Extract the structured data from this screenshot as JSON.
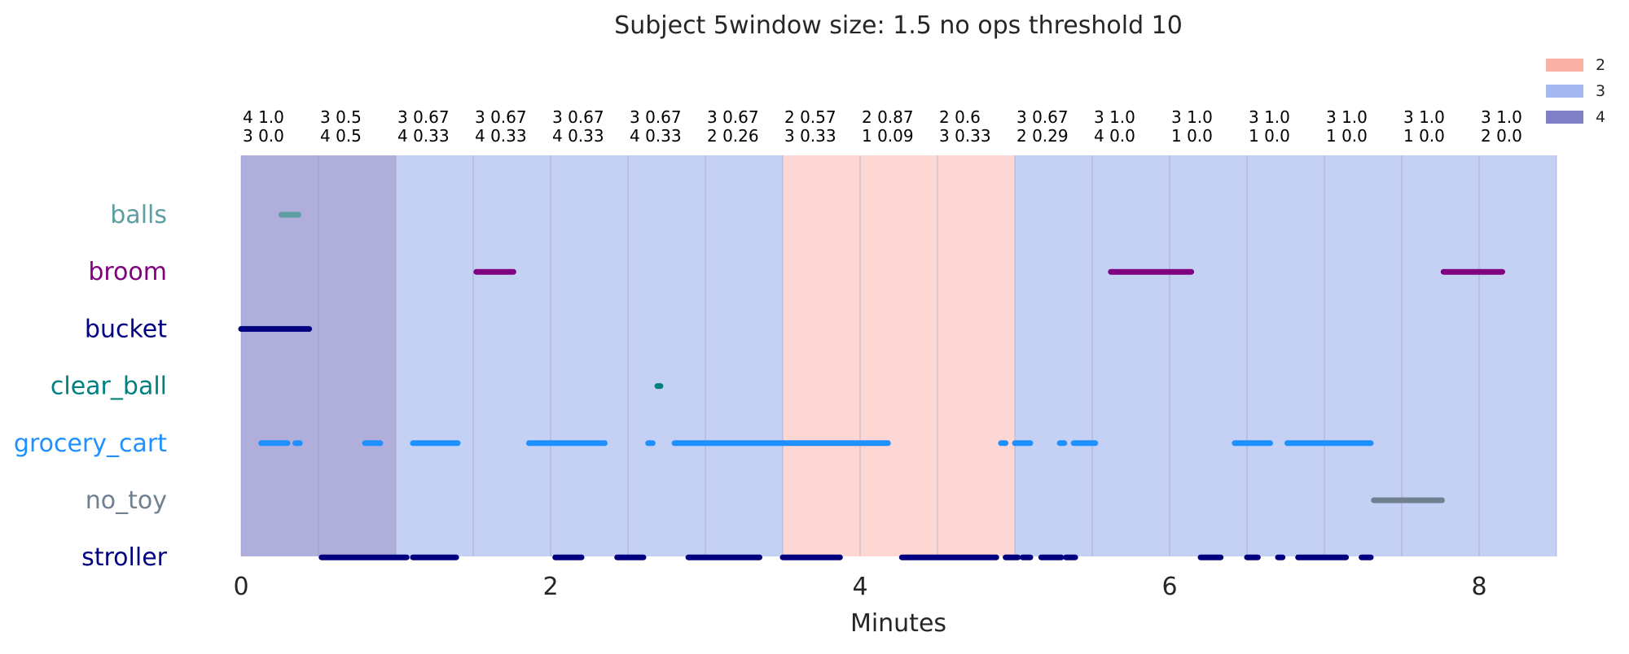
{
  "chart_data": {
    "type": "timeline",
    "title": "Subject 5window size: 1.5 no ops threshold 10",
    "xlabel": "Minutes",
    "ylabel": "",
    "xlim": [
      0,
      8.5
    ],
    "xticks": [
      0,
      2,
      4,
      6,
      8
    ],
    "x_tick_labels": [
      "0",
      "2",
      "4",
      "6",
      "8"
    ],
    "grid": false,
    "legend": {
      "position": "top-right",
      "entries": [
        {
          "label": "2",
          "color": "#fab0a4"
        },
        {
          "label": "3",
          "color": "#a5b8ef"
        },
        {
          "label": "4",
          "color": "#7f80c6"
        }
      ]
    },
    "category_colors": {
      "2": "#fdd7d3",
      "3": "#c5d1f4",
      "4": "#b0afdc"
    },
    "windows": [
      {
        "start": 0.0,
        "end": 0.5,
        "category": "4",
        "label1": "4 1.0",
        "label2": "3 0.0"
      },
      {
        "start": 0.5,
        "end": 1.0,
        "category": "4",
        "label1": "3 0.5",
        "label2": "4 0.5"
      },
      {
        "start": 1.0,
        "end": 1.5,
        "category": "3",
        "label1": "3 0.67",
        "label2": "4 0.33"
      },
      {
        "start": 1.5,
        "end": 2.0,
        "category": "3",
        "label1": "3 0.67",
        "label2": "4 0.33"
      },
      {
        "start": 2.0,
        "end": 2.5,
        "category": "3",
        "label1": "3 0.67",
        "label2": "4 0.33"
      },
      {
        "start": 2.5,
        "end": 3.0,
        "category": "3",
        "label1": "3 0.67",
        "label2": "4 0.33"
      },
      {
        "start": 3.0,
        "end": 3.5,
        "category": "3",
        "label1": "3 0.67",
        "label2": "2 0.26"
      },
      {
        "start": 3.5,
        "end": 4.0,
        "category": "2",
        "label1": "2 0.57",
        "label2": "3 0.33"
      },
      {
        "start": 4.0,
        "end": 4.5,
        "category": "2",
        "label1": "2 0.87",
        "label2": "1 0.09"
      },
      {
        "start": 4.5,
        "end": 5.0,
        "category": "2",
        "label1": "2 0.6",
        "label2": "3 0.33"
      },
      {
        "start": 5.0,
        "end": 5.5,
        "category": "3",
        "label1": "3 0.67",
        "label2": "2 0.29"
      },
      {
        "start": 5.5,
        "end": 6.0,
        "category": "3",
        "label1": "3 1.0",
        "label2": "4 0.0"
      },
      {
        "start": 6.0,
        "end": 6.5,
        "category": "3",
        "label1": "3 1.0",
        "label2": "1 0.0"
      },
      {
        "start": 6.5,
        "end": 7.0,
        "category": "3",
        "label1": "3 1.0",
        "label2": "1 0.0"
      },
      {
        "start": 7.0,
        "end": 7.5,
        "category": "3",
        "label1": "3 1.0",
        "label2": "1 0.0"
      },
      {
        "start": 7.5,
        "end": 8.0,
        "category": "3",
        "label1": "3 1.0",
        "label2": "1 0.0"
      },
      {
        "start": 8.0,
        "end": 8.5,
        "category": "3",
        "label1": "3 1.0",
        "label2": "2 0.0"
      }
    ],
    "series": [
      {
        "name": "balls",
        "color": "#5f9ea0",
        "intervals": [
          [
            0.26,
            0.37
          ]
        ]
      },
      {
        "name": "broom",
        "color": "#800080",
        "intervals": [
          [
            1.52,
            1.76
          ],
          [
            5.62,
            6.14
          ],
          [
            7.77,
            8.15
          ]
        ]
      },
      {
        "name": "bucket",
        "color": "#000080",
        "intervals": [
          [
            0.0,
            0.44
          ]
        ]
      },
      {
        "name": "clear_ball",
        "color": "#008080",
        "intervals": [
          [
            2.69,
            2.71
          ]
        ]
      },
      {
        "name": "grocery_cart",
        "color": "#1e90ff",
        "intervals": [
          [
            0.13,
            0.3
          ],
          [
            0.35,
            0.38
          ],
          [
            0.8,
            0.9
          ],
          [
            1.11,
            1.4
          ],
          [
            1.86,
            2.35
          ],
          [
            2.63,
            2.66
          ],
          [
            2.8,
            4.18
          ],
          [
            4.91,
            4.94
          ],
          [
            5.0,
            5.1
          ],
          [
            5.29,
            5.32
          ],
          [
            5.38,
            5.52
          ],
          [
            6.42,
            6.65
          ],
          [
            6.76,
            7.3
          ]
        ]
      },
      {
        "name": "no_toy",
        "color": "#708090",
        "intervals": [
          [
            7.32,
            7.76
          ]
        ]
      },
      {
        "name": "stroller",
        "color": "#000080",
        "intervals": [
          [
            0.52,
            1.07
          ],
          [
            1.11,
            1.39
          ],
          [
            2.03,
            2.2
          ],
          [
            2.43,
            2.6
          ],
          [
            2.89,
            3.35
          ],
          [
            3.5,
            3.87
          ],
          [
            4.27,
            4.88
          ],
          [
            4.94,
            5.02
          ],
          [
            5.05,
            5.1
          ],
          [
            5.17,
            5.3
          ],
          [
            5.33,
            5.39
          ],
          [
            6.2,
            6.33
          ],
          [
            6.5,
            6.57
          ],
          [
            6.7,
            6.73
          ],
          [
            6.83,
            7.14
          ],
          [
            7.24,
            7.3
          ]
        ]
      }
    ]
  }
}
